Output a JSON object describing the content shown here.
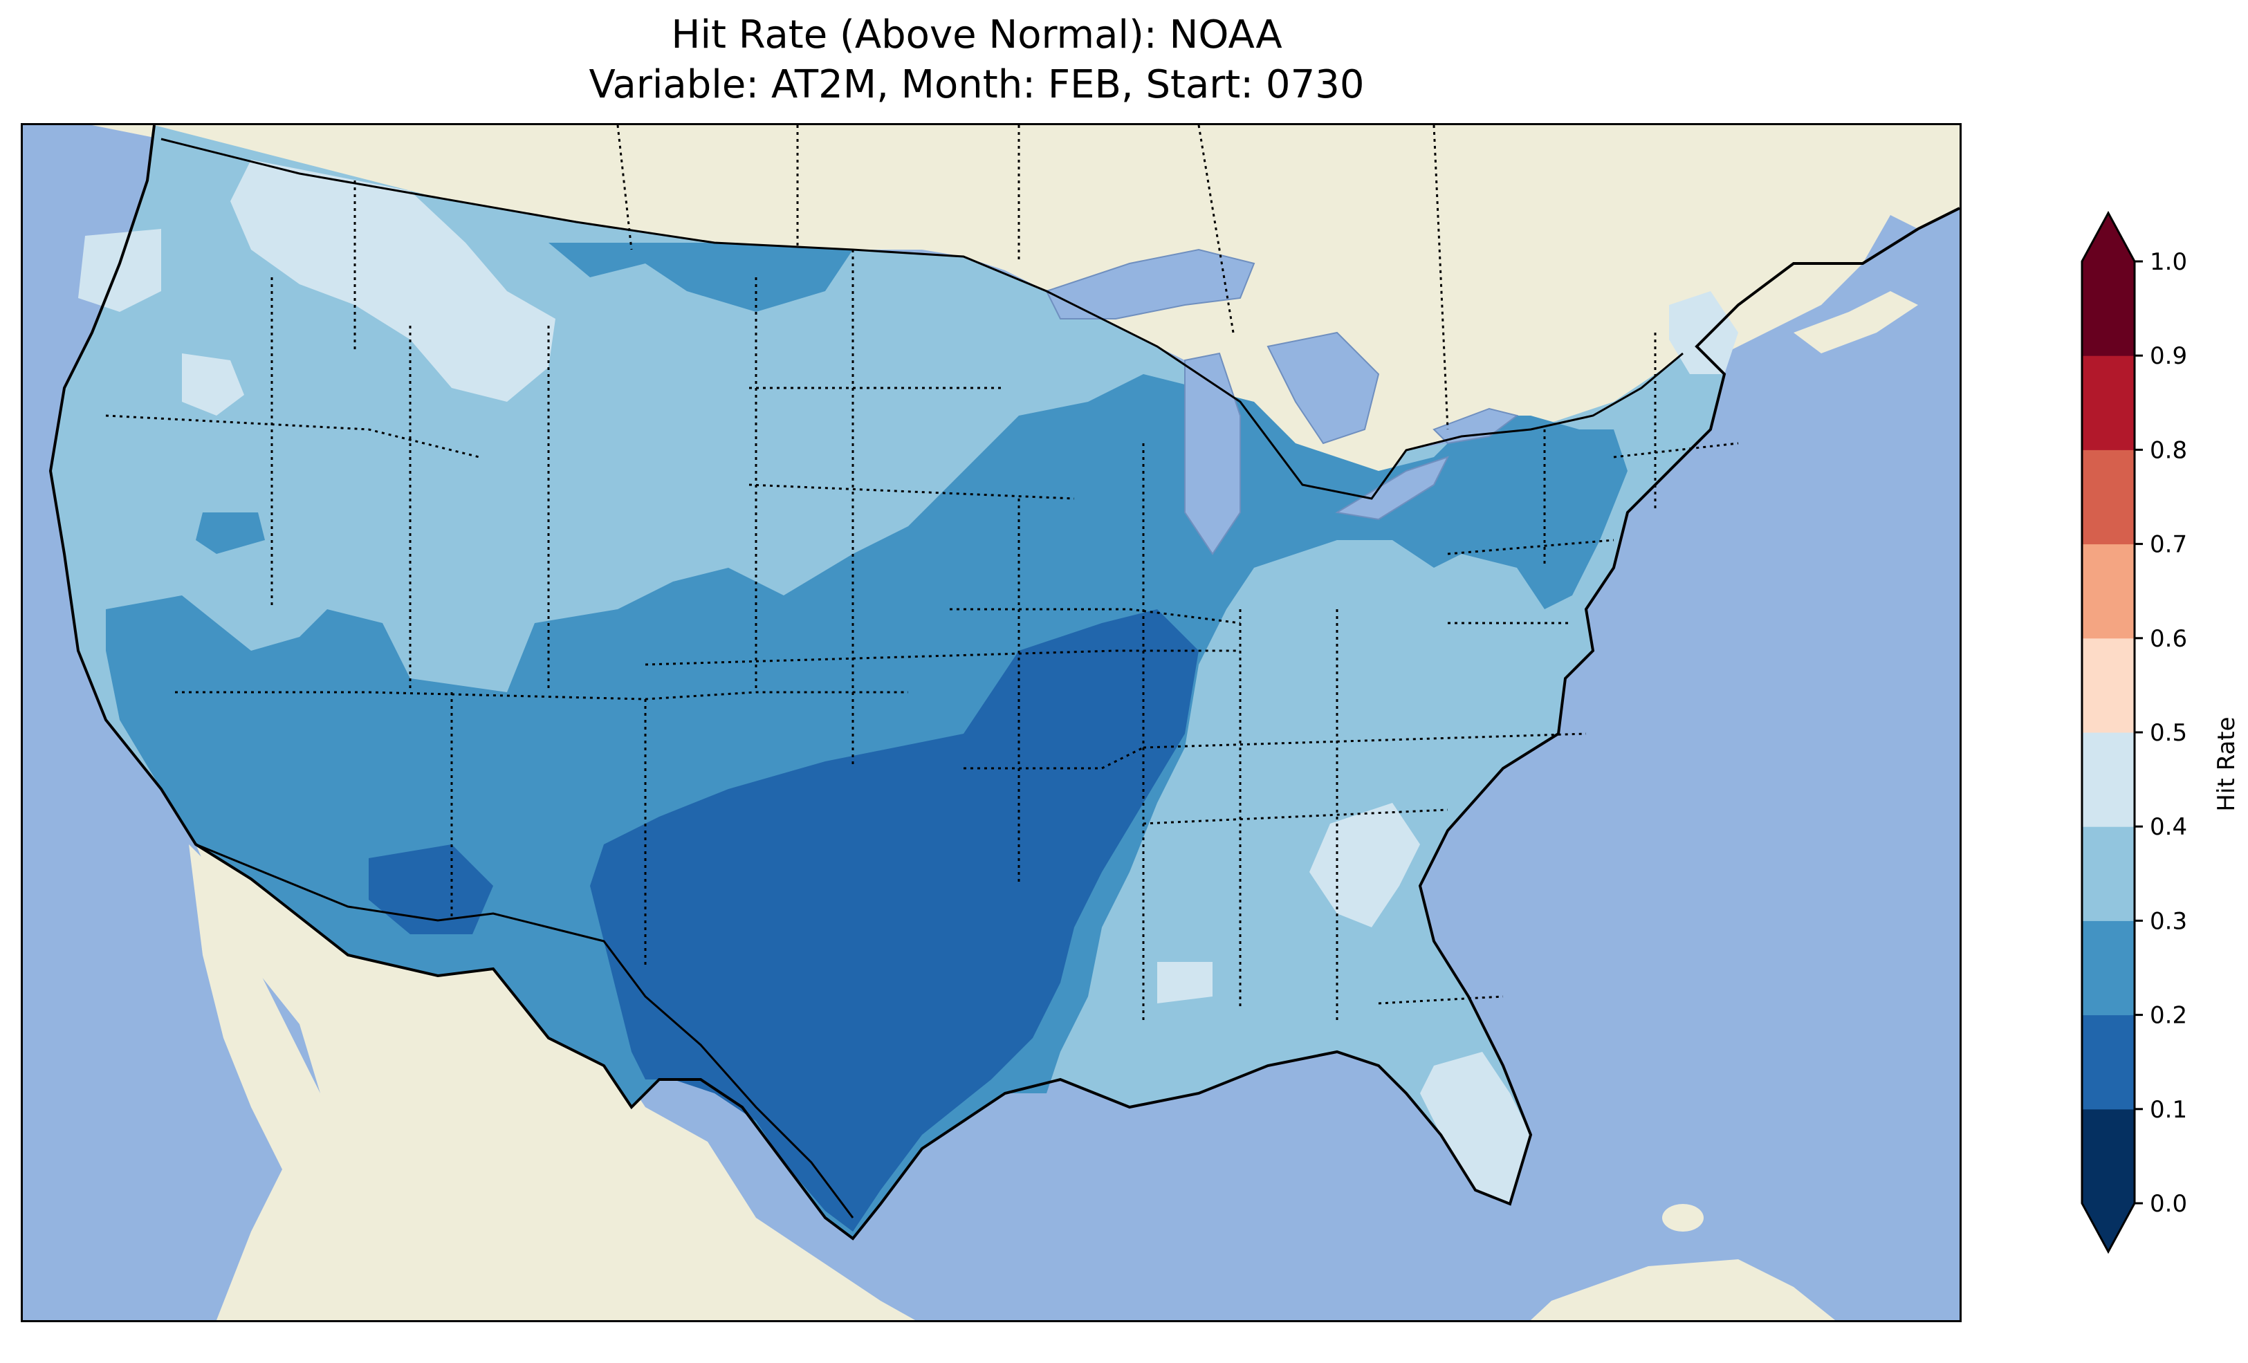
{
  "title": {
    "line1": "Hit Rate (Above Normal): NOAA",
    "line2": "Variable: AT2M, Month: FEB, Start: 0730"
  },
  "colors": {
    "ocean": "#94b4e0",
    "land": "#efedd9",
    "lakes": "#94b4e0",
    "border": "#000000"
  },
  "colorbar": {
    "label": "Hit Rate",
    "ticks": [
      "0.0",
      "0.1",
      "0.2",
      "0.3",
      "0.4",
      "0.5",
      "0.6",
      "0.7",
      "0.8",
      "0.9",
      "1.0"
    ],
    "extend": "both",
    "under_color": "#053061",
    "over_color": "#67001f",
    "bins": [
      {
        "range": "0.0-0.1",
        "color": "#053061"
      },
      {
        "range": "0.1-0.2",
        "color": "#2166ac"
      },
      {
        "range": "0.2-0.3",
        "color": "#4393c3"
      },
      {
        "range": "0.3-0.4",
        "color": "#92c5de"
      },
      {
        "range": "0.4-0.5",
        "color": "#d1e5f0"
      },
      {
        "range": "0.5-0.6",
        "color": "#fddbc7"
      },
      {
        "range": "0.6-0.7",
        "color": "#f4a582"
      },
      {
        "range": "0.7-0.8",
        "color": "#d6604d"
      },
      {
        "range": "0.8-0.9",
        "color": "#b2182b"
      },
      {
        "range": "0.9-1.0",
        "color": "#67001f"
      }
    ]
  },
  "regions": [
    {
      "name": "pacific-northwest",
      "bin": "0.3-0.4"
    },
    {
      "name": "northern-rockies",
      "bin": "0.4-0.5"
    },
    {
      "name": "northern-plains",
      "bin": "0.3-0.4"
    },
    {
      "name": "montana-east",
      "bin": "0.2-0.3"
    },
    {
      "name": "great-basin",
      "bin": "0.3-0.4"
    },
    {
      "name": "california",
      "bin": "0.2-0.3"
    },
    {
      "name": "southwest",
      "bin": "0.2-0.3"
    },
    {
      "name": "central-plains",
      "bin": "0.2-0.3"
    },
    {
      "name": "southern-plains",
      "bin": "0.1-0.2"
    },
    {
      "name": "upper-midwest",
      "bin": "0.2-0.3"
    },
    {
      "name": "ohio-valley",
      "bin": "0.3-0.4"
    },
    {
      "name": "northeast",
      "bin": "0.2-0.3"
    },
    {
      "name": "new-england",
      "bin": "0.3-0.4"
    },
    {
      "name": "southeast",
      "bin": "0.3-0.4"
    },
    {
      "name": "florida",
      "bin": "0.4-0.5"
    },
    {
      "name": "carolinas-pocket",
      "bin": "0.4-0.5"
    }
  ]
}
